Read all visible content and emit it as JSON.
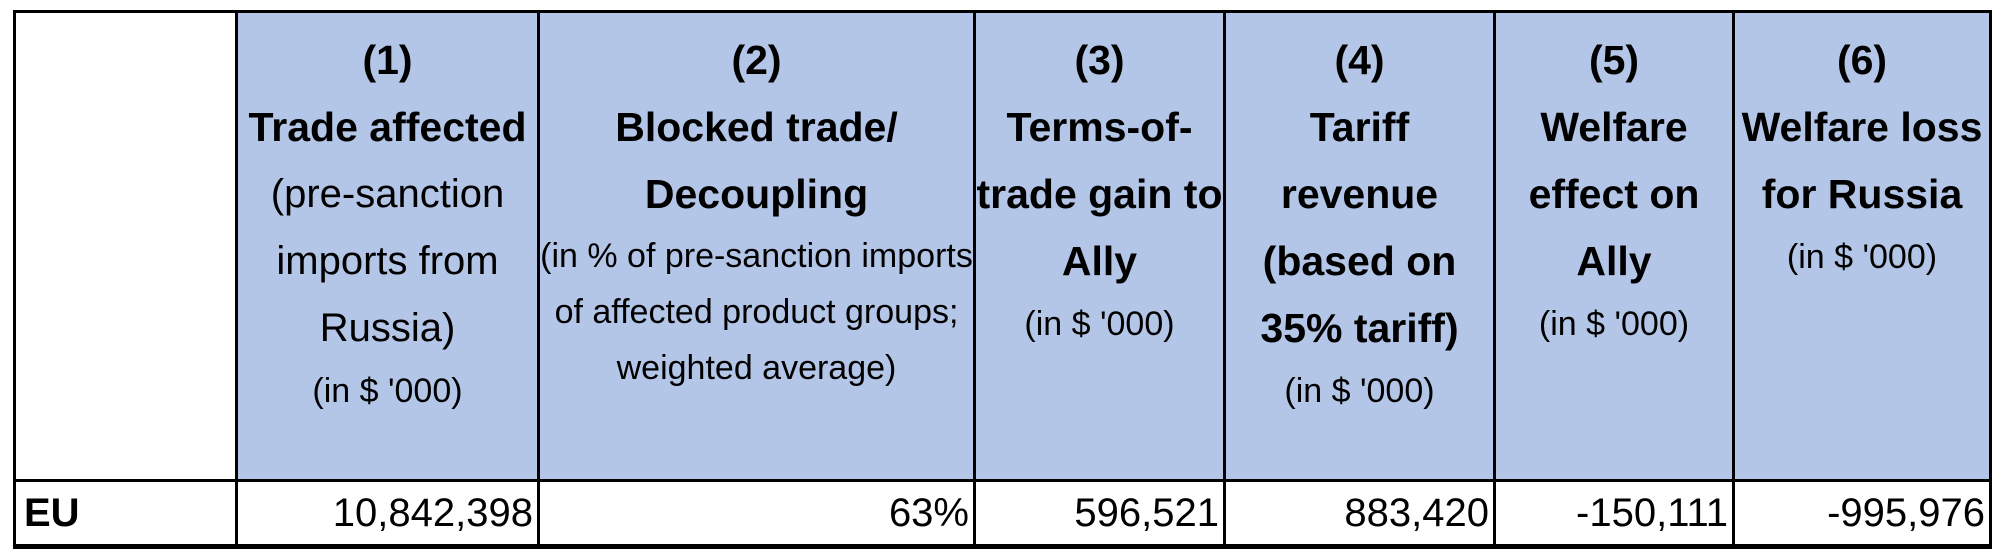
{
  "table": {
    "columns": [
      {
        "number": "(1)",
        "title": "Trade affected",
        "note": "(pre-sanction imports from Russia)",
        "unit": "(in $ '000)"
      },
      {
        "number": "(2)",
        "title": "Blocked trade/ Decoupling",
        "note": "(in % of pre-sanction imports of affected product groups; weighted average)"
      },
      {
        "number": "(3)",
        "title": "Terms-of-trade gain to Ally",
        "unit": "(in $ '000)"
      },
      {
        "number": "(4)",
        "title": "Tariff revenue (based on 35% tariff)",
        "unit": "(in $ '000)"
      },
      {
        "number": "(5)",
        "title": "Welfare effect on Ally",
        "unit": "(in $ '000)"
      },
      {
        "number": "(6)",
        "title": "Welfare loss for Russia",
        "unit": "(in $ '000)"
      }
    ],
    "rows": [
      [
        "EU",
        "10,842,398",
        "63%",
        "596,521",
        "883,420",
        "-150,111",
        "-995,976"
      ]
    ]
  }
}
